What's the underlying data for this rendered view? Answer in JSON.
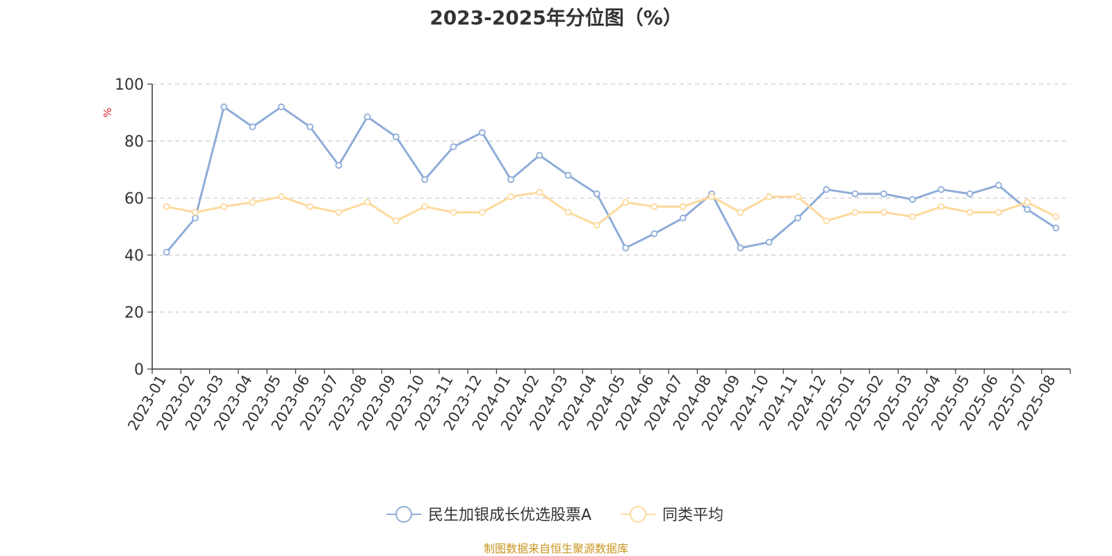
{
  "chart_data": {
    "type": "line",
    "title": "2023-2025年分位图（%）",
    "ylabel": "%",
    "ylim": [
      0,
      100
    ],
    "yticks": [
      0,
      20,
      40,
      60,
      80,
      100
    ],
    "grid": true,
    "legend": "bottom-center",
    "x": [
      "2023-01",
      "2023-02",
      "2023-03",
      "2023-04",
      "2023-05",
      "2023-06",
      "2023-07",
      "2023-08",
      "2023-09",
      "2023-10",
      "2023-11",
      "2023-12",
      "2024-01",
      "2024-02",
      "2024-03",
      "2024-04",
      "2024-05",
      "2024-06",
      "2024-07",
      "2024-08",
      "2024-09",
      "2024-10",
      "2024-11",
      "2024-12",
      "2025-01",
      "2025-02",
      "2025-03",
      "2025-04",
      "2025-05",
      "2025-06",
      "2025-07",
      "2025-08"
    ],
    "series": [
      {
        "name": "民生加银成长优选股票A",
        "color": "#8eacd8",
        "values": [
          41,
          53,
          92,
          85,
          92,
          85,
          71.5,
          88.5,
          81.5,
          66.5,
          78,
          83,
          66.5,
          75,
          68,
          61.5,
          42.5,
          47.5,
          53,
          61.5,
          42.5,
          44.5,
          53,
          63,
          61.5,
          61.5,
          59.5,
          63,
          61.5,
          64.5,
          56,
          49.5
        ]
      },
      {
        "name": "同类平均",
        "color": "#fdd99b",
        "values": [
          57,
          55,
          57,
          58.5,
          60.5,
          57,
          55,
          58.5,
          52,
          57,
          55,
          55,
          60.5,
          62,
          55,
          50.5,
          58.5,
          57,
          57,
          60.5,
          55,
          60.5,
          60.5,
          52,
          55,
          55,
          53.5,
          57,
          55,
          55,
          58.5,
          53.5
        ]
      }
    ]
  },
  "footer": {
    "source": "制图数据来自恒生聚源数据库"
  }
}
